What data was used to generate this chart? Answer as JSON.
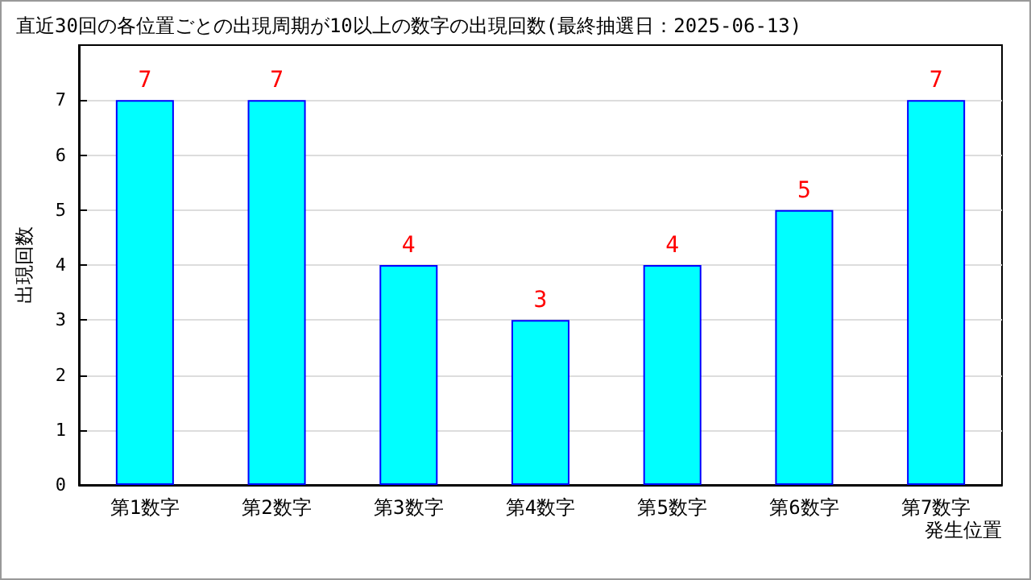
{
  "chart_data": {
    "type": "bar",
    "title": "直近30回の各位置ごとの出現周期が10以上の数字の出現回数(最終抽選日：2025-06-13)",
    "xlabel": "発生位置",
    "ylabel": "出現回数",
    "categories": [
      "第1数字",
      "第2数字",
      "第3数字",
      "第4数字",
      "第5数字",
      "第6数字",
      "第7数字"
    ],
    "series": [
      {
        "color": "#00ffff",
        "values": [
          7,
          7,
          4,
          3,
          4,
          5,
          7
        ]
      }
    ],
    "ylim": [
      0,
      8
    ],
    "yticks": [
      0,
      1,
      2,
      3,
      4,
      5,
      6,
      7
    ],
    "grid": "y",
    "data_labels": true
  }
}
